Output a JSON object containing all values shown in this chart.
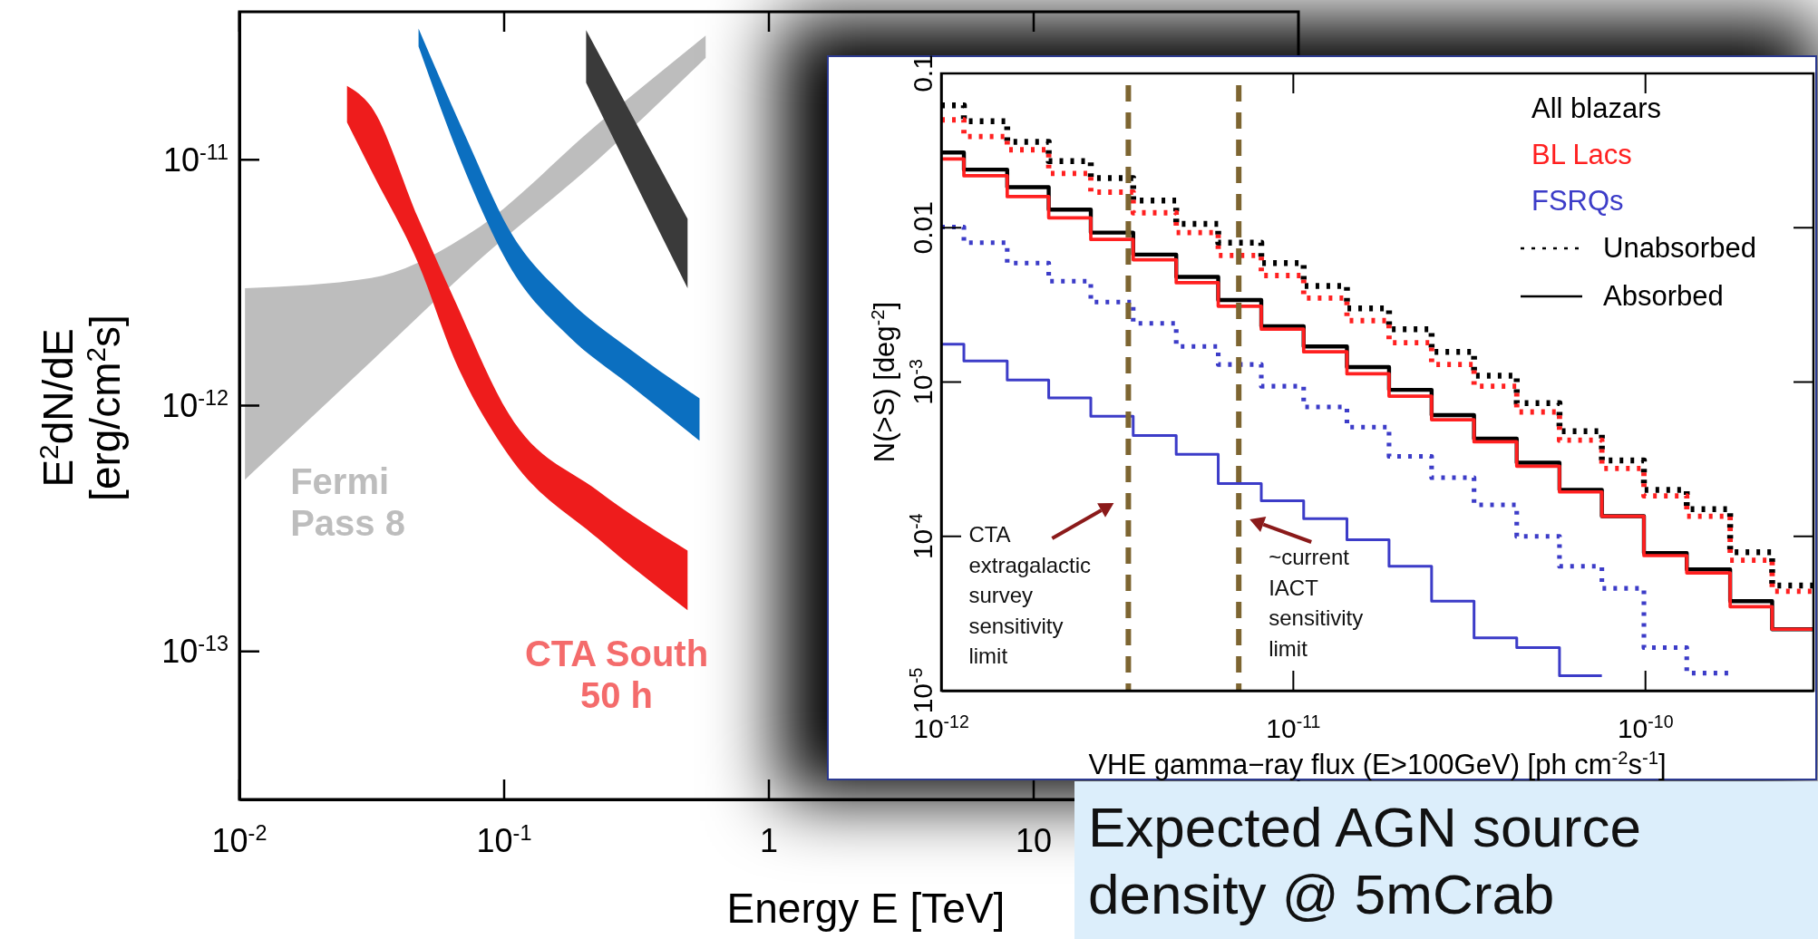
{
  "chart_data": [
    {
      "type": "line",
      "xlabel": "Energy E [TeV]",
      "ylabel": "E$^{2}$dN/dE [erg/cm$^{2}$s]",
      "log": "xy",
      "xlim": [
        0.01,
        100
      ],
      "ylim": [
        2.5e-14,
        4e-11
      ],
      "xticks": [
        {
          "value": 0.01,
          "label": "10$^{-2}$"
        },
        {
          "value": 0.1,
          "label": "10$^{-1}$"
        },
        1,
        10
      ],
      "yticks": [
        {
          "value": 1e-13,
          "label": "10$^{-13}$"
        },
        {
          "value": 1e-12,
          "label": "10$^{-12}$"
        },
        {
          "value": 1e-11,
          "label": "10$^{-11}$"
        }
      ],
      "grid": false,
      "legend": false,
      "series": [
        {
          "name": "Fermi Pass 8",
          "color": "#bdbdbd",
          "x": [
            0.0105,
            0.0314,
            0.0759,
            0.226,
            0.577
          ],
          "values": [
            null,
            null,
            null,
            null,
            null
          ],
          "lower": [
            5e-13,
            1.51e-12,
            3.7e-12,
            1e-11,
            2.6e-11
          ],
          "upper": [
            3e-12,
            3.3e-12,
            5.1e-12,
            1.4e-11,
            3.2e-11
          ]
        },
        {
          "name": "CTA South 50 h",
          "color": "#ee1c1c",
          "x": [
            0.0255,
            0.0314,
            0.0475,
            0.065,
            0.1038,
            0.226,
            0.493
          ],
          "values": [
            null,
            null,
            null,
            null,
            null,
            null,
            null
          ],
          "lower": [
            1.42e-11,
            9.1e-12,
            3.76e-12,
            1.54e-12,
            6.3e-13,
            2.88e-13,
            1.47e-13
          ],
          "upper": [
            2e-11,
            1.65e-11,
            5.75e-12,
            2.69e-12,
            9.3e-13,
            4.5e-13,
            2.57e-13
          ]
        },
        {
          "color": "#0b6fc0",
          "x": [
            0.0475,
            0.0721,
            0.1038,
            0.175,
            0.293,
            0.547
          ],
          "values": [
            null,
            null,
            null,
            null,
            null,
            null
          ],
          "lower": [
            2.89e-11,
            8.7e-12,
            3.76e-12,
            1.92e-12,
            1.23e-12,
            7.2e-13
          ],
          "upper": [
            3.42e-11,
            1.22e-11,
            5.26e-12,
            2.69e-12,
            1.72e-12,
            1.07e-12
          ]
        },
        {
          "color": "#3a3a3a",
          "x": [
            0.204,
            0.293,
            0.493
          ],
          "values": [
            null,
            null,
            null
          ],
          "lower": [
            2.06e-11,
            9.3e-12,
            3e-12
          ],
          "upper": [
            3.37e-11,
            1.63e-11,
            5.75e-12
          ]
        }
      ]
    },
    {
      "type": "step",
      "title": "Expected AGN source density @ 5mCrab",
      "xlabel": "VHE gamma−ray flux (E>100GeV) [ph cm$^{-2}$s$^{-1}$]",
      "ylabel": "N(>S) [deg$^{-2}$]",
      "log": "xy",
      "xlim": [
        1e-12,
        3e-10
      ],
      "ylim": [
        1e-05,
        0.1
      ],
      "xticks": [
        {
          "value": 1e-12,
          "label": "10$^{-12}$"
        },
        {
          "value": 1e-11,
          "label": "10$^{-11}$"
        },
        {
          "value": 1e-10,
          "label": "10$^{-10}$"
        }
      ],
      "yticks": [
        {
          "value": 1e-05,
          "label": "10$^{-5}$"
        },
        {
          "value": 0.0001,
          "label": "10$^{-4}$"
        },
        {
          "value": 0.001,
          "label": "10$^{-3}$"
        },
        0.01,
        0.1
      ],
      "grid": false,
      "legend": "top right",
      "annotations": [
        "Unabsorbed",
        "Absorbed"
      ],
      "ref_lines": [
        {
          "axis": "x",
          "value": 3.4e-12,
          "label": "CTA extragalactic survey sensitivity limit",
          "color": "#7d6531",
          "line_style": "dashed"
        },
        {
          "axis": "x",
          "value": 7e-12,
          "label": "~current IACT sensitivity limit",
          "color": "#7d6531",
          "line_style": "dashed"
        }
      ],
      "series": [
        {
          "color": "#000000",
          "line_style": "dotted",
          "x": [
            1e-12,
            1.16e-12,
            1.54e-12,
            2.02e-12,
            2.66e-12,
            3.51e-12,
            4.65e-12,
            6.12e-12,
            8.11e-12,
            1.07e-11,
            1.42e-11,
            1.87e-11,
            2.47e-11,
            3.26e-11,
            4.31e-11,
            5.7e-11,
            7.52e-11,
            9.9e-11,
            1.31e-10,
            1.74e-10,
            2.29e-10,
            3e-10
          ],
          "values": [
            0.062,
            0.049,
            0.036,
            0.027,
            0.021,
            0.015,
            0.0106,
            0.008,
            0.0059,
            0.0042,
            0.003,
            0.0022,
            0.00157,
            0.0011,
            0.00073,
            0.00048,
            0.00031,
            0.0002,
            0.00015,
            7.9e-05,
            4.8e-05,
            4.8e-05
          ]
        },
        {
          "color": "#ff2020",
          "line_style": "dotted",
          "x": [
            1e-12,
            1.16e-12,
            1.54e-12,
            2.02e-12,
            2.66e-12,
            3.51e-12,
            4.65e-12,
            6.12e-12,
            8.11e-12,
            1.07e-11,
            1.42e-11,
            1.87e-11,
            2.47e-11,
            3.26e-11,
            4.31e-11,
            5.7e-11,
            7.52e-11,
            9.9e-11,
            1.31e-10,
            1.74e-10,
            2.29e-10,
            3e-10
          ],
          "values": [
            0.05,
            0.039,
            0.032,
            0.0225,
            0.017,
            0.0125,
            0.0093,
            0.0066,
            0.0049,
            0.0035,
            0.0025,
            0.0018,
            0.0013,
            0.00094,
            0.00064,
            0.00042,
            0.000275,
            0.000183,
            0.000135,
            7e-05,
            4.4e-05,
            4.4e-05
          ]
        },
        {
          "color": "#3c3cc8",
          "line_style": "dotted",
          "x": [
            1e-12,
            1.16e-12,
            1.54e-12,
            2.02e-12,
            2.66e-12,
            3.51e-12,
            4.65e-12,
            6.12e-12,
            8.11e-12,
            1.07e-11,
            1.42e-11,
            1.87e-11,
            2.47e-11,
            3.26e-11,
            4.31e-11,
            5.7e-11,
            7.52e-11,
            9.9e-11,
            1.31e-10,
            1.74e-10
          ],
          "values": [
            0.0101,
            0.008,
            0.0059,
            0.0045,
            0.0033,
            0.0024,
            0.0017,
            0.0013,
            0.00094,
            0.00069,
            0.00051,
            0.00033,
            0.00024,
            0.00016,
            0.0001,
            6.4e-05,
            4.6e-05,
            1.9e-05,
            1.3e-05,
            1.3e-05
          ]
        },
        {
          "name": "All blazars",
          "color": "#000000",
          "line_style": "solid",
          "x": [
            1e-12,
            1.16e-12,
            1.54e-12,
            2.02e-12,
            2.66e-12,
            3.51e-12,
            4.65e-12,
            6.12e-12,
            8.11e-12,
            1.07e-11,
            1.42e-11,
            1.87e-11,
            2.47e-11,
            3.26e-11,
            4.31e-11,
            5.7e-11,
            7.52e-11,
            9.9e-11,
            1.31e-10,
            1.74e-10,
            2.29e-10,
            3e-10
          ],
          "values": [
            0.0307,
            0.0238,
            0.0183,
            0.0131,
            0.0093,
            0.0067,
            0.0048,
            0.0034,
            0.0023,
            0.0017,
            0.00125,
            0.00089,
            0.00061,
            0.00043,
            0.0003,
            0.0002,
            0.000135,
            7.8e-05,
            6.1e-05,
            3.8e-05,
            2.5e-05,
            2.5e-05
          ]
        },
        {
          "name": "BL Lacs",
          "color": "#ff2020",
          "line_style": "solid",
          "x": [
            1e-12,
            1.16e-12,
            1.54e-12,
            2.02e-12,
            2.66e-12,
            3.51e-12,
            4.65e-12,
            6.12e-12,
            8.11e-12,
            1.07e-11,
            1.42e-11,
            1.87e-11,
            2.47e-11,
            3.26e-11,
            4.31e-11,
            5.7e-11,
            7.52e-11,
            9.9e-11,
            1.31e-10,
            1.74e-10,
            2.29e-10,
            3e-10
          ],
          "values": [
            0.0279,
            0.0217,
            0.0159,
            0.0116,
            0.0084,
            0.0062,
            0.0044,
            0.0031,
            0.0022,
            0.00157,
            0.00113,
            0.00081,
            0.00057,
            0.00041,
            0.000285,
            0.000194,
            0.000135,
            7.5e-05,
            5.8e-05,
            3.5e-05,
            2.5e-05,
            2.5e-05
          ]
        },
        {
          "name": "FSRQs",
          "color": "#3c3cc8",
          "line_style": "solid",
          "x": [
            1e-12,
            1.16e-12,
            1.54e-12,
            2.02e-12,
            2.66e-12,
            3.51e-12,
            4.65e-12,
            6.12e-12,
            8.11e-12,
            1.07e-11,
            1.42e-11,
            1.87e-11,
            2.47e-11,
            3.26e-11,
            4.31e-11,
            5.7e-11,
            7.52e-11
          ],
          "values": [
            0.00176,
            0.00137,
            0.00103,
            0.00079,
            0.0006,
            0.00045,
            0.00034,
            0.00022,
            0.00017,
            0.00013,
            9.5e-05,
            6.4e-05,
            3.8e-05,
            2.2e-05,
            1.9e-05,
            1.25e-05,
            1.25e-05
          ]
        }
      ]
    }
  ]
}
